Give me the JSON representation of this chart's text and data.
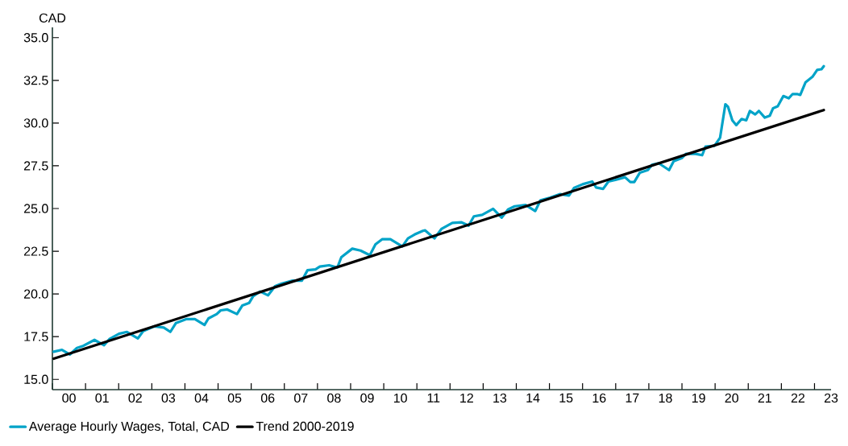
{
  "chart_data": {
    "type": "line",
    "ylabel": "CAD",
    "xlim": [
      -0.5,
      23
    ],
    "ylim": [
      14.4,
      35.6
    ],
    "xticks": [
      {
        "value": -0.5,
        "label": null
      },
      {
        "value": 0.5,
        "label": null
      },
      {
        "value": 1.5,
        "label": null
      },
      {
        "value": 2.5,
        "label": null
      },
      {
        "value": 3.5,
        "label": null
      },
      {
        "value": 4.5,
        "label": null
      },
      {
        "value": 5.5,
        "label": null
      },
      {
        "value": 6.5,
        "label": null
      },
      {
        "value": 7.5,
        "label": null
      },
      {
        "value": 8.5,
        "label": null
      },
      {
        "value": 9.5,
        "label": null
      },
      {
        "value": 10.5,
        "label": null
      },
      {
        "value": 11.5,
        "label": null
      },
      {
        "value": 12.5,
        "label": null
      },
      {
        "value": 13.5,
        "label": null
      },
      {
        "value": 14.5,
        "label": null
      },
      {
        "value": 15.5,
        "label": null
      },
      {
        "value": 16.5,
        "label": null
      },
      {
        "value": 17.5,
        "label": null
      },
      {
        "value": 18.5,
        "label": null
      },
      {
        "value": 19.5,
        "label": null
      },
      {
        "value": 20.5,
        "label": null
      },
      {
        "value": 21.5,
        "label": null
      },
      {
        "value": 22.5,
        "label": null
      },
      {
        "value": 0,
        "label": "00"
      },
      {
        "value": 1,
        "label": "01"
      },
      {
        "value": 2,
        "label": "02"
      },
      {
        "value": 3,
        "label": "03"
      },
      {
        "value": 4,
        "label": "04"
      },
      {
        "value": 5,
        "label": "05"
      },
      {
        "value": 6,
        "label": "06"
      },
      {
        "value": 7,
        "label": "07"
      },
      {
        "value": 8,
        "label": "08"
      },
      {
        "value": 9,
        "label": "09"
      },
      10,
      11,
      12,
      13,
      14,
      15,
      16,
      17,
      18,
      19,
      20,
      21,
      22,
      23
    ],
    "yticks": [
      {
        "value": 15,
        "label": "15.0"
      },
      {
        "value": 17.5,
        "label": "17.5"
      },
      {
        "value": 20,
        "label": "20.0"
      },
      {
        "value": 22.5,
        "label": "22.5"
      },
      {
        "value": 25,
        "label": "25.0"
      },
      {
        "value": 27.5,
        "label": "27.5"
      },
      {
        "value": 30,
        "label": "30.0"
      },
      {
        "value": 32.5,
        "label": "32.5"
      },
      {
        "value": 35,
        "label": "35.0"
      }
    ],
    "grid": false,
    "legend": "bottom",
    "marker": "none",
    "line_style": "solid",
    "series": [
      {
        "name": "Average Hourly Wages, Total, CAD",
        "color": "#00a3c8",
        "x": [
          -0.46,
          -0.21,
          0.03,
          0.24,
          0.44,
          0.77,
          1.06,
          1.22,
          1.51,
          1.75,
          2.08,
          2.24,
          2.57,
          2.86,
          3.06,
          3.23,
          3.55,
          3.8,
          4.09,
          4.21,
          4.46,
          4.58,
          4.78,
          5.07,
          5.23,
          5.44,
          5.56,
          5.77,
          6.01,
          6.22,
          6.42,
          6.75,
          7.03,
          7.2,
          7.44,
          7.57,
          7.85,
          8.1,
          8.22,
          8.55,
          8.8,
          9.08,
          9.25,
          9.45,
          9.7,
          10.06,
          10.23,
          10.43,
          10.68,
          10.75,
          11.03,
          11.24,
          11.57,
          11.85,
          12.06,
          12.22,
          12.47,
          12.8,
          13.06,
          13.25,
          13.45,
          13.78,
          14.07,
          14.23,
          14.52,
          14.81,
          15.09,
          15.24,
          15.5,
          15.79,
          15.91,
          16.12,
          16.28,
          16.49,
          16.78,
          16.94,
          17.06,
          17.23,
          17.47,
          17.6,
          17.8,
          18.11,
          18.25,
          18.5,
          18.62,
          18.91,
          19.11,
          19.21,
          19.48,
          19.65,
          19.81,
          19.89,
          20.02,
          20.14,
          20.3,
          20.44,
          20.55,
          20.71,
          20.82,
          21.0,
          21.15,
          21.25,
          21.39,
          21.56,
          21.72,
          21.84,
          21.97,
          22.07,
          22.23,
          22.44,
          22.58,
          22.71,
          22.78
        ],
        "values": [
          16.62,
          16.73,
          16.46,
          16.84,
          16.97,
          17.31,
          17.0,
          17.36,
          17.67,
          17.78,
          17.4,
          17.83,
          18.1,
          18.03,
          17.78,
          18.3,
          18.53,
          18.53,
          18.19,
          18.57,
          18.82,
          19.04,
          19.09,
          18.82,
          19.32,
          19.48,
          19.87,
          20.14,
          19.92,
          20.45,
          20.61,
          20.78,
          20.78,
          21.39,
          21.44,
          21.6,
          21.68,
          21.55,
          22.15,
          22.65,
          22.54,
          22.27,
          22.9,
          23.2,
          23.2,
          22.78,
          23.25,
          23.48,
          23.69,
          23.72,
          23.25,
          23.8,
          24.16,
          24.19,
          24.0,
          24.54,
          24.63,
          24.98,
          24.47,
          24.94,
          25.13,
          25.21,
          24.85,
          25.48,
          25.64,
          25.84,
          25.76,
          26.2,
          26.42,
          26.58,
          26.23,
          26.15,
          26.58,
          26.67,
          26.83,
          26.55,
          26.55,
          27.1,
          27.25,
          27.57,
          27.65,
          27.25,
          27.77,
          27.96,
          28.2,
          28.2,
          28.12,
          28.62,
          28.67,
          29.14,
          31.1,
          30.95,
          30.16,
          29.88,
          30.24,
          30.16,
          30.71,
          30.51,
          30.71,
          30.32,
          30.43,
          30.87,
          30.98,
          31.58,
          31.45,
          31.7,
          31.7,
          31.65,
          32.39,
          32.71,
          33.11,
          33.15,
          33.33
        ]
      },
      {
        "name": "Trend 2000-2019",
        "color": "#000000",
        "x": [
          -0.46,
          22.78
        ],
        "values": [
          16.21,
          30.76
        ]
      }
    ]
  }
}
